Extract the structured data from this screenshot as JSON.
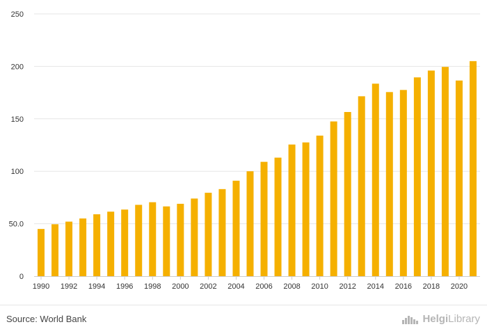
{
  "chart_data": {
    "type": "bar",
    "title": "",
    "xlabel": "",
    "ylabel": "",
    "ylim": [
      0,
      250
    ],
    "yticks": [
      "0",
      "50.0",
      "100",
      "150",
      "200",
      "250"
    ],
    "ytick_values": [
      0,
      50,
      100,
      150,
      200,
      250
    ],
    "grid": true,
    "legend": "none",
    "bar_color": "#f5b000",
    "categories": [
      "1990",
      "1991",
      "1992",
      "1993",
      "1994",
      "1995",
      "1996",
      "1997",
      "1998",
      "1999",
      "2000",
      "2001",
      "2002",
      "2003",
      "2004",
      "2005",
      "2006",
      "2007",
      "2008",
      "2009",
      "2010",
      "2011",
      "2012",
      "2013",
      "2014",
      "2015",
      "2016",
      "2017",
      "2018",
      "2019",
      "2020",
      "2021"
    ],
    "xtick_labels": [
      "1990",
      "1992",
      "1994",
      "1996",
      "1998",
      "2000",
      "2002",
      "2004",
      "2006",
      "2008",
      "2010",
      "2012",
      "2014",
      "2016",
      "2018",
      "2020"
    ],
    "values": [
      45,
      49.5,
      52,
      55,
      59,
      61.5,
      63.5,
      68,
      70.5,
      66.5,
      69,
      74,
      79.5,
      83,
      91,
      100,
      109,
      113,
      125.5,
      127.5,
      134,
      147.5,
      156.5,
      171.5,
      183.5,
      175.5,
      177.5,
      189.5,
      196,
      199.5,
      186.5,
      205
    ]
  },
  "footer": {
    "source": "Source: World Bank",
    "logo_bold": "Helgi",
    "logo_light": "Library"
  }
}
